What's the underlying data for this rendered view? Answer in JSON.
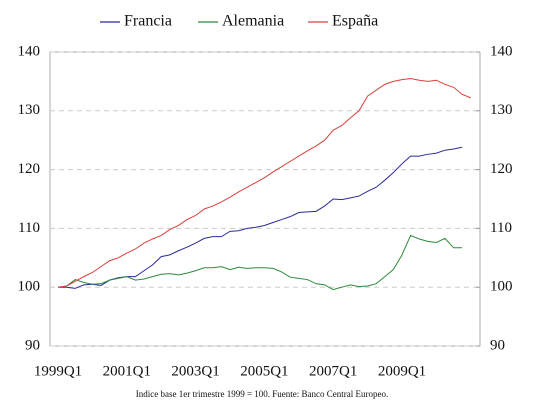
{
  "chart_data": {
    "type": "line",
    "categories": [
      "1999Q1",
      null,
      null,
      null,
      null,
      null,
      null,
      null,
      "2001Q1",
      null,
      null,
      null,
      null,
      null,
      null,
      null,
      "2003Q1",
      null,
      null,
      null,
      null,
      null,
      null,
      null,
      "2005Q1",
      null,
      null,
      null,
      null,
      null,
      null,
      null,
      "2007Q1",
      null,
      null,
      null,
      null,
      null,
      null,
      null,
      "2009Q1",
      null,
      null,
      null,
      null,
      null,
      null,
      null,
      null
    ],
    "series": [
      {
        "name": "Francia",
        "color": "#2b2b9a",
        "values": [
          100,
          100,
          99.8,
          100.4,
          100.5,
          100.3,
          101.2,
          101.6,
          101.8,
          101.8,
          102.8,
          103.8,
          105.2,
          105.5,
          106.2,
          106.8,
          107.5,
          108.3,
          108.6,
          108.6,
          109.5,
          109.6,
          110,
          110.2,
          110.5,
          111,
          111.5,
          112,
          112.7,
          112.8,
          112.9,
          113.8,
          115,
          114.9,
          115.2,
          115.5,
          116.3,
          117,
          118.2,
          119.5,
          121,
          122.3,
          122.3,
          122.6,
          122.8,
          123.3,
          123.5,
          123.8,
          null
        ]
      },
      {
        "name": "Alemania",
        "color": "#2e8b3a",
        "values": [
          100,
          100.2,
          101.3,
          100.8,
          100.5,
          100.6,
          101.2,
          101.5,
          101.8,
          101.2,
          101.4,
          101.8,
          102.2,
          102.3,
          102.1,
          102.4,
          102.8,
          103.3,
          103.3,
          103.5,
          103,
          103.4,
          103.2,
          103.3,
          103.3,
          103.2,
          102.6,
          101.7,
          101.5,
          101.3,
          100.6,
          100.4,
          99.6,
          100,
          100.4,
          100.1,
          100.2,
          100.6,
          101.8,
          103,
          105.5,
          108.8,
          108.2,
          107.8,
          107.6,
          108.3,
          106.7,
          106.7,
          null
        ]
      },
      {
        "name": "España",
        "color": "#d9403a",
        "values": [
          100,
          100.2,
          101,
          101.8,
          102.5,
          103.5,
          104.5,
          105,
          105.8,
          106.5,
          107.5,
          108.2,
          108.8,
          109.8,
          110.5,
          111.5,
          112.2,
          113.3,
          113.8,
          114.5,
          115.3,
          116.2,
          117,
          117.8,
          118.6,
          119.6,
          120.5,
          121.4,
          122.3,
          123.2,
          124,
          125,
          126.7,
          127.5,
          128.8,
          130,
          132.5,
          133.5,
          134.5,
          135,
          135.3,
          135.5,
          135.2,
          135,
          135.2,
          134.5,
          134,
          132.8,
          132.2
        ]
      }
    ],
    "ylim": [
      90,
      140
    ],
    "yticks": [
      90,
      100,
      110,
      120,
      130,
      140
    ],
    "y2lim": [
      90,
      140
    ],
    "y2ticks": [
      90,
      100,
      110,
      120,
      130,
      140
    ],
    "grid": true,
    "legend": "top",
    "note": "Indice base 1er trimestre 1999 = 100. Fuente: Banco Central Europeo."
  }
}
